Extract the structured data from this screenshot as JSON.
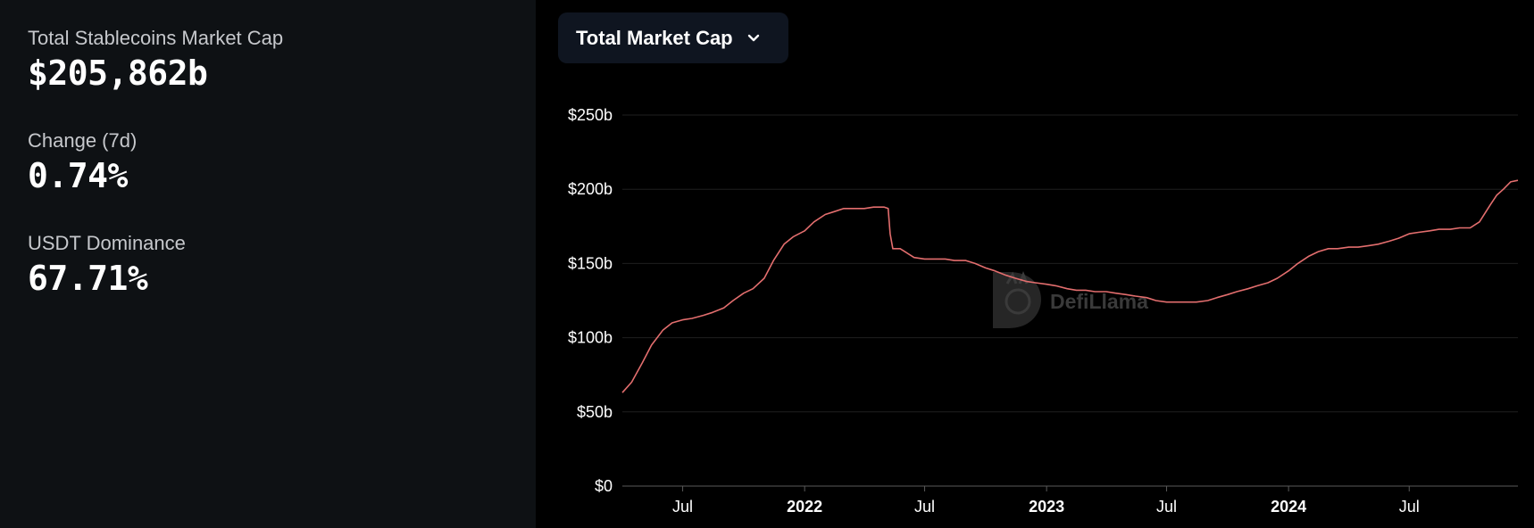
{
  "stats": {
    "market_cap_label": "Total Stablecoins Market Cap",
    "market_cap_value": "$205,862b",
    "change_label": "Change (7d)",
    "change_value": "0.74%",
    "dominance_label": "USDT Dominance",
    "dominance_value": "67.71%"
  },
  "dropdown": {
    "selected": "Total Market Cap",
    "icon": "chevron-down-icon"
  },
  "watermark": {
    "text": "DefiLlama",
    "icon": "llama-logo-icon"
  },
  "colors": {
    "left_bg": "#0e1114",
    "right_bg": "#000000",
    "line": "#e36e6e",
    "grid": "#1f1f1f",
    "dropdown_bg": "#0f1520"
  },
  "chart_data": {
    "type": "line",
    "title": "",
    "xlabel": "",
    "ylabel": "",
    "ylim": [
      0,
      250
    ],
    "y_ticks": [
      0,
      50,
      100,
      150,
      200,
      250
    ],
    "y_tick_labels": [
      "$0",
      "$50b",
      "$100b",
      "$150b",
      "$200b",
      "$250b"
    ],
    "x_range": [
      "2021-04-01",
      "2024-12-12"
    ],
    "x_ticks": [
      {
        "date": "2021-07-01",
        "label": "Jul",
        "bold": false
      },
      {
        "date": "2022-01-01",
        "label": "2022",
        "bold": true
      },
      {
        "date": "2022-07-01",
        "label": "Jul",
        "bold": false
      },
      {
        "date": "2023-01-01",
        "label": "2023",
        "bold": true
      },
      {
        "date": "2023-07-01",
        "label": "Jul",
        "bold": false
      },
      {
        "date": "2024-01-01",
        "label": "2024",
        "bold": true
      },
      {
        "date": "2024-07-01",
        "label": "Jul",
        "bold": false
      }
    ],
    "grid": true,
    "series": [
      {
        "name": "",
        "x": [
          "2021-04-01",
          "2021-04-15",
          "2021-05-01",
          "2021-05-15",
          "2021-06-01",
          "2021-06-15",
          "2021-07-01",
          "2021-07-15",
          "2021-08-01",
          "2021-08-15",
          "2021-09-01",
          "2021-09-15",
          "2021-10-01",
          "2021-10-15",
          "2021-11-01",
          "2021-11-15",
          "2021-12-01",
          "2021-12-15",
          "2022-01-01",
          "2022-01-15",
          "2022-02-01",
          "2022-02-15",
          "2022-03-01",
          "2022-03-15",
          "2022-04-01",
          "2022-04-15",
          "2022-05-01",
          "2022-05-07",
          "2022-05-10",
          "2022-05-14",
          "2022-05-25",
          "2022-06-01",
          "2022-06-15",
          "2022-07-01",
          "2022-07-15",
          "2022-08-01",
          "2022-08-15",
          "2022-09-01",
          "2022-09-15",
          "2022-10-01",
          "2022-10-15",
          "2022-11-01",
          "2022-11-15",
          "2022-12-01",
          "2022-12-15",
          "2023-01-01",
          "2023-01-15",
          "2023-02-01",
          "2023-02-15",
          "2023-03-01",
          "2023-03-15",
          "2023-04-01",
          "2023-04-15",
          "2023-05-01",
          "2023-05-15",
          "2023-06-01",
          "2023-06-15",
          "2023-07-01",
          "2023-07-15",
          "2023-08-01",
          "2023-08-15",
          "2023-09-01",
          "2023-09-15",
          "2023-10-01",
          "2023-10-15",
          "2023-11-01",
          "2023-11-15",
          "2023-12-01",
          "2023-12-15",
          "2024-01-01",
          "2024-01-15",
          "2024-02-01",
          "2024-02-15",
          "2024-03-01",
          "2024-03-15",
          "2024-04-01",
          "2024-04-15",
          "2024-05-01",
          "2024-05-15",
          "2024-06-01",
          "2024-06-15",
          "2024-07-01",
          "2024-07-15",
          "2024-08-01",
          "2024-08-15",
          "2024-09-01",
          "2024-09-15",
          "2024-10-01",
          "2024-10-15",
          "2024-11-01",
          "2024-11-10",
          "2024-11-20",
          "2024-12-01",
          "2024-12-12"
        ],
        "values": [
          63,
          70,
          83,
          95,
          105,
          110,
          112,
          113,
          115,
          117,
          120,
          125,
          130,
          133,
          140,
          152,
          163,
          168,
          172,
          178,
          183,
          185,
          187,
          187,
          187,
          188,
          188,
          187,
          170,
          160,
          160,
          158,
          154,
          153,
          153,
          153,
          152,
          152,
          150,
          147,
          145,
          142,
          140,
          138,
          137,
          136,
          135,
          133,
          132,
          132,
          131,
          131,
          130,
          129,
          128,
          127,
          125,
          124,
          124,
          124,
          124,
          125,
          127,
          129,
          131,
          133,
          135,
          137,
          140,
          145,
          150,
          155,
          158,
          160,
          160,
          161,
          161,
          162,
          163,
          165,
          167,
          170,
          171,
          172,
          173,
          173,
          174,
          174,
          178,
          190,
          196,
          200,
          205,
          206
        ]
      }
    ]
  }
}
